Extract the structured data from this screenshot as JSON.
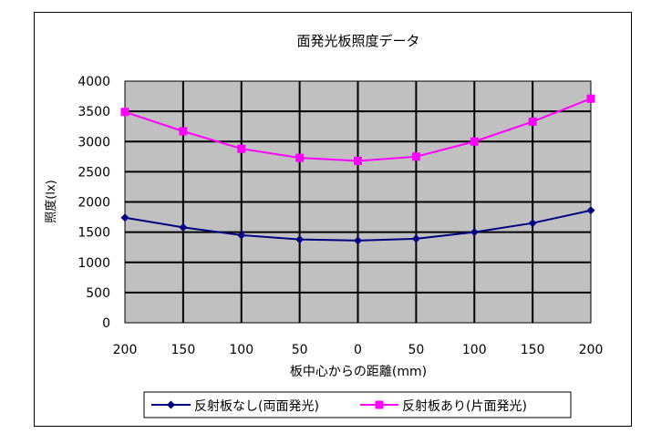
{
  "chart_data": {
    "type": "line",
    "title": "面発光板照度データ",
    "xlabel": "板中心からの距離(mm)",
    "ylabel": "照度(lx)",
    "categories": [
      "200",
      "150",
      "100",
      "50",
      "0",
      "50",
      "100",
      "150",
      "200"
    ],
    "ylim": [
      0,
      4000
    ],
    "yticks": [
      "0",
      "500",
      "1000",
      "1500",
      "2000",
      "2500",
      "3000",
      "3500",
      "4000"
    ],
    "grid": true,
    "legend_position": "bottom",
    "plot_background": "#c0c0c0",
    "series": [
      {
        "name": "反射板なし(両面発光)",
        "color": "#000080",
        "marker": "diamond",
        "values": [
          1740,
          1580,
          1450,
          1380,
          1360,
          1390,
          1500,
          1650,
          1860
        ]
      },
      {
        "name": "反射板あり(片面発光)",
        "color": "#ff00ff",
        "marker": "square",
        "values": [
          3490,
          3170,
          2880,
          2730,
          2680,
          2750,
          3000,
          3330,
          3710
        ]
      }
    ]
  }
}
